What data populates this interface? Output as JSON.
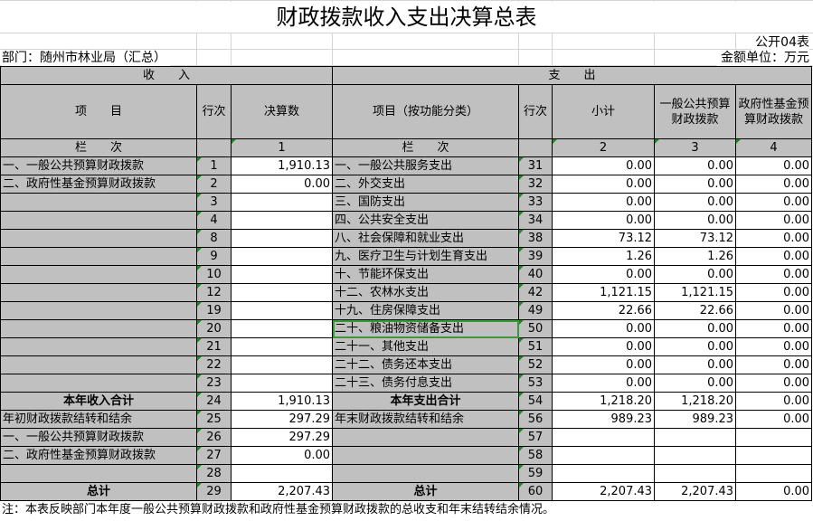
{
  "title": "财政拨款收入支出决算总表",
  "form_code": "公开04表",
  "department": "部门：随州市林业局（汇总）",
  "unit": "金额单位：万元",
  "headers": {
    "income": "收　　入",
    "expense": "支　　出",
    "item": "项　　目",
    "row_no": "行次",
    "final_amount": "决算数",
    "exp_item": "项目（按功能分类）",
    "exp_row_no": "行次",
    "subtotal": "小计",
    "general_budget": "一般公共预算财政拨款",
    "gov_fund": "政府性基金预算财政拨款",
    "col_index_label": "栏　　次",
    "exp_col_index_label": "栏　　次",
    "col1": "1",
    "col2": "2",
    "col3": "3",
    "col4": "4"
  },
  "rows": [
    {
      "in_item": "一、一般公共预算财政拨款",
      "in_no": "1",
      "in_amt": "1,910.13",
      "ex_item": "一、一般公共服务支出",
      "ex_no": "31",
      "sub": "0.00",
      "gen": "0.00",
      "fund": "0.00"
    },
    {
      "in_item": "二、政府性基金预算财政拨款",
      "in_no": "2",
      "in_amt": "0.00",
      "ex_item": "二、外交支出",
      "ex_no": "32",
      "sub": "0.00",
      "gen": "0.00",
      "fund": "0.00"
    },
    {
      "in_item": "",
      "in_no": "3",
      "in_amt": "",
      "ex_item": "三、国防支出",
      "ex_no": "33",
      "sub": "0.00",
      "gen": "0.00",
      "fund": "0.00"
    },
    {
      "in_item": "",
      "in_no": "4",
      "in_amt": "",
      "ex_item": "四、公共安全支出",
      "ex_no": "34",
      "sub": "0.00",
      "gen": "0.00",
      "fund": "0.00"
    },
    {
      "in_item": "",
      "in_no": "8",
      "in_amt": "",
      "ex_item": "八、社会保障和就业支出",
      "ex_no": "38",
      "sub": "73.12",
      "gen": "73.12",
      "fund": "0.00"
    },
    {
      "in_item": "",
      "in_no": "9",
      "in_amt": "",
      "ex_item": "九、医疗卫生与计划生育支出",
      "ex_no": "39",
      "sub": "1.26",
      "gen": "1.26",
      "fund": "0.00"
    },
    {
      "in_item": "",
      "in_no": "10",
      "in_amt": "",
      "ex_item": "十、节能环保支出",
      "ex_no": "40",
      "sub": "0.00",
      "gen": "0.00",
      "fund": "0.00"
    },
    {
      "in_item": "",
      "in_no": "12",
      "in_amt": "",
      "ex_item": "十二、农林水支出",
      "ex_no": "42",
      "sub": "1,121.15",
      "gen": "1,121.15",
      "fund": "0.00"
    },
    {
      "in_item": "",
      "in_no": "19",
      "in_amt": "",
      "ex_item": "十九、住房保障支出",
      "ex_no": "49",
      "sub": "22.66",
      "gen": "22.66",
      "fund": "0.00"
    },
    {
      "in_item": "",
      "in_no": "20",
      "in_amt": "",
      "ex_item": "二十、粮油物资储备支出",
      "ex_no": "50",
      "sub": "0.00",
      "gen": "0.00",
      "fund": "0.00",
      "selected": true
    },
    {
      "in_item": "",
      "in_no": "21",
      "in_amt": "",
      "ex_item": "二十一、其他支出",
      "ex_no": "51",
      "sub": "0.00",
      "gen": "0.00",
      "fund": "0.00"
    },
    {
      "in_item": "",
      "in_no": "22",
      "in_amt": "",
      "ex_item": "二十二、债务还本支出",
      "ex_no": "52",
      "sub": "0.00",
      "gen": "0.00",
      "fund": "0.00"
    },
    {
      "in_item": "",
      "in_no": "23",
      "in_amt": "",
      "ex_item": "二十三、债务付息支出",
      "ex_no": "53",
      "sub": "0.00",
      "gen": "0.00",
      "fund": "0.00"
    },
    {
      "in_item": "本年收入合计",
      "in_no": "24",
      "in_amt": "1,910.13",
      "ex_item": "本年支出合计",
      "ex_no": "54",
      "sub": "1,218.20",
      "gen": "1,218.20",
      "fund": "0.00",
      "bold": true
    },
    {
      "in_item": "年初财政拨款结转和结余",
      "in_no": "25",
      "in_amt": "297.29",
      "ex_item": "年末财政拨款结转和结余",
      "ex_no": "56",
      "sub": "989.23",
      "gen": "989.23",
      "fund": "0.00"
    },
    {
      "in_item": "一、一般公共预算财政拨款",
      "in_no": "26",
      "in_amt": "297.29",
      "ex_item": "",
      "ex_no": "57",
      "sub": "",
      "gen": "",
      "fund": ""
    },
    {
      "in_item": "二、政府性基金预算财政拨款",
      "in_no": "27",
      "in_amt": "0.00",
      "ex_item": "",
      "ex_no": "58",
      "sub": "",
      "gen": "",
      "fund": ""
    },
    {
      "in_item": "",
      "in_no": "28",
      "in_amt": "",
      "ex_item": "",
      "ex_no": "59",
      "sub": "",
      "gen": "",
      "fund": ""
    },
    {
      "in_item": "总计",
      "in_no": "29",
      "in_amt": "2,207.43",
      "ex_item": "总计",
      "ex_no": "60",
      "sub": "2,207.43",
      "gen": "2,207.43",
      "fund": "0.00",
      "bold": true
    }
  ],
  "note": "注：本表反映部门本年度一般公共预算财政拨款和政府性基金预算财政拨款的总收支和年末结转结余情况。"
}
